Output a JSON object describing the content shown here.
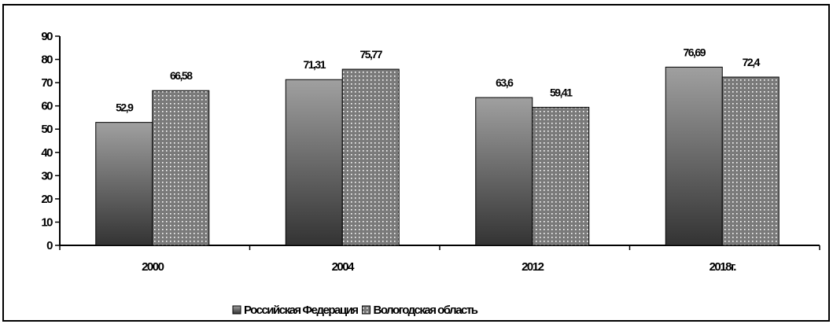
{
  "chart_data": {
    "type": "bar",
    "title": "",
    "xlabel": "",
    "ylabel": "",
    "categories": [
      "2000",
      "2004",
      "2012",
      "2018г."
    ],
    "series": [
      {
        "name": "Российская Федерация",
        "values": [
          52.9,
          71.31,
          63.6,
          76.69
        ],
        "labels": [
          "52,9",
          "71,31",
          "63,6",
          "76,69"
        ],
        "pattern": "gradient-gray"
      },
      {
        "name": "Вологодская область",
        "values": [
          66.58,
          75.77,
          59.41,
          72.4
        ],
        "labels": [
          "66,58",
          "75,77",
          "59,41",
          "72,4"
        ],
        "pattern": "dotted"
      }
    ],
    "yticks": [
      "0",
      "10",
      "20",
      "30",
      "40",
      "50",
      "60",
      "70",
      "80",
      "90"
    ],
    "ylim": [
      0,
      90
    ],
    "grid": false,
    "legend_position": "bottom",
    "colors": {
      "dark": "#3a3a3a",
      "light": "#9a9a9a",
      "dots_bg": "#7d7d7d",
      "dots": "#ffffff"
    }
  }
}
